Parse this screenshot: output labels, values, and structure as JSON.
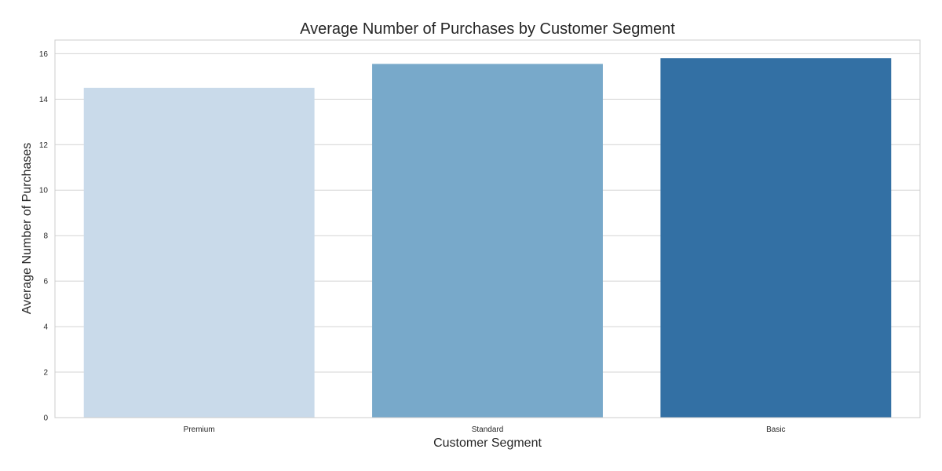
{
  "chart_data": {
    "type": "bar",
    "title": "Average Number of Purchases by Customer Segment",
    "xlabel": "Customer Segment",
    "ylabel": "Average Number of Purchases",
    "categories": [
      "Premium",
      "Standard",
      "Basic"
    ],
    "values": [
      14.5,
      15.55,
      15.8
    ],
    "ylim": [
      0,
      16.6
    ],
    "yticks": [
      0,
      2,
      4,
      6,
      8,
      10,
      12,
      14,
      16
    ],
    "grid": "horizontal",
    "bar_colors": [
      "#c9daea",
      "#78a9ca",
      "#3370a4"
    ]
  }
}
